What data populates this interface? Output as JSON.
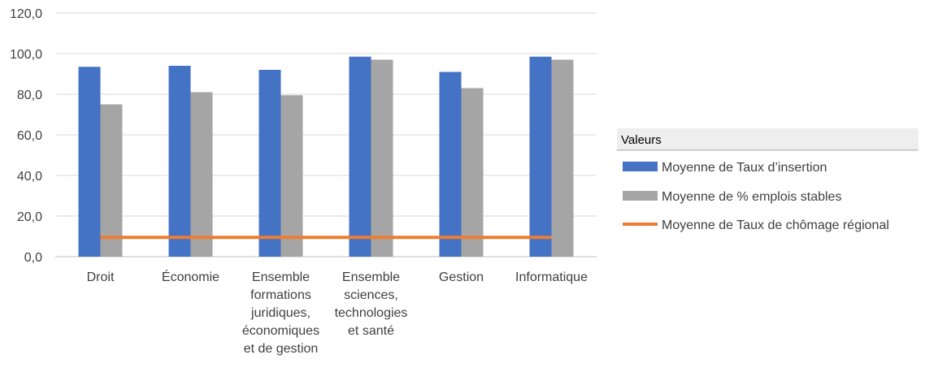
{
  "chart_data": {
    "type": "bar",
    "categories": [
      [
        "Droit"
      ],
      [
        "Économie"
      ],
      [
        "Ensemble",
        "formations",
        "juridiques,",
        "économiques",
        "et de gestion"
      ],
      [
        "Ensemble",
        "sciences,",
        "technologies",
        "et santé"
      ],
      [
        "Gestion"
      ],
      [
        "Informatique"
      ]
    ],
    "series": [
      {
        "name": "Moyenne de Taux d’insertion",
        "kind": "bar",
        "color": "#4472c4",
        "values": [
          93.5,
          94,
          92,
          98.5,
          91,
          98.5
        ]
      },
      {
        "name": "Moyenne de % emplois stables",
        "kind": "bar",
        "color": "#a5a5a5",
        "values": [
          75,
          81,
          79.5,
          97,
          83,
          97
        ]
      },
      {
        "name": "Moyenne de Taux de chômage régional",
        "kind": "line",
        "color": "#ed7d31",
        "values": [
          9.5,
          9.5,
          9.5,
          9.5,
          9.5,
          9.5
        ]
      }
    ],
    "ylim": [
      0,
      120
    ],
    "yticks": [
      "0,0",
      "20,0",
      "40,0",
      "60,0",
      "80,0",
      "100,0",
      "120,0"
    ],
    "grid": true,
    "legend": {
      "title": "Valeurs",
      "position": "right"
    },
    "title": "",
    "xlabel": "",
    "ylabel": ""
  }
}
